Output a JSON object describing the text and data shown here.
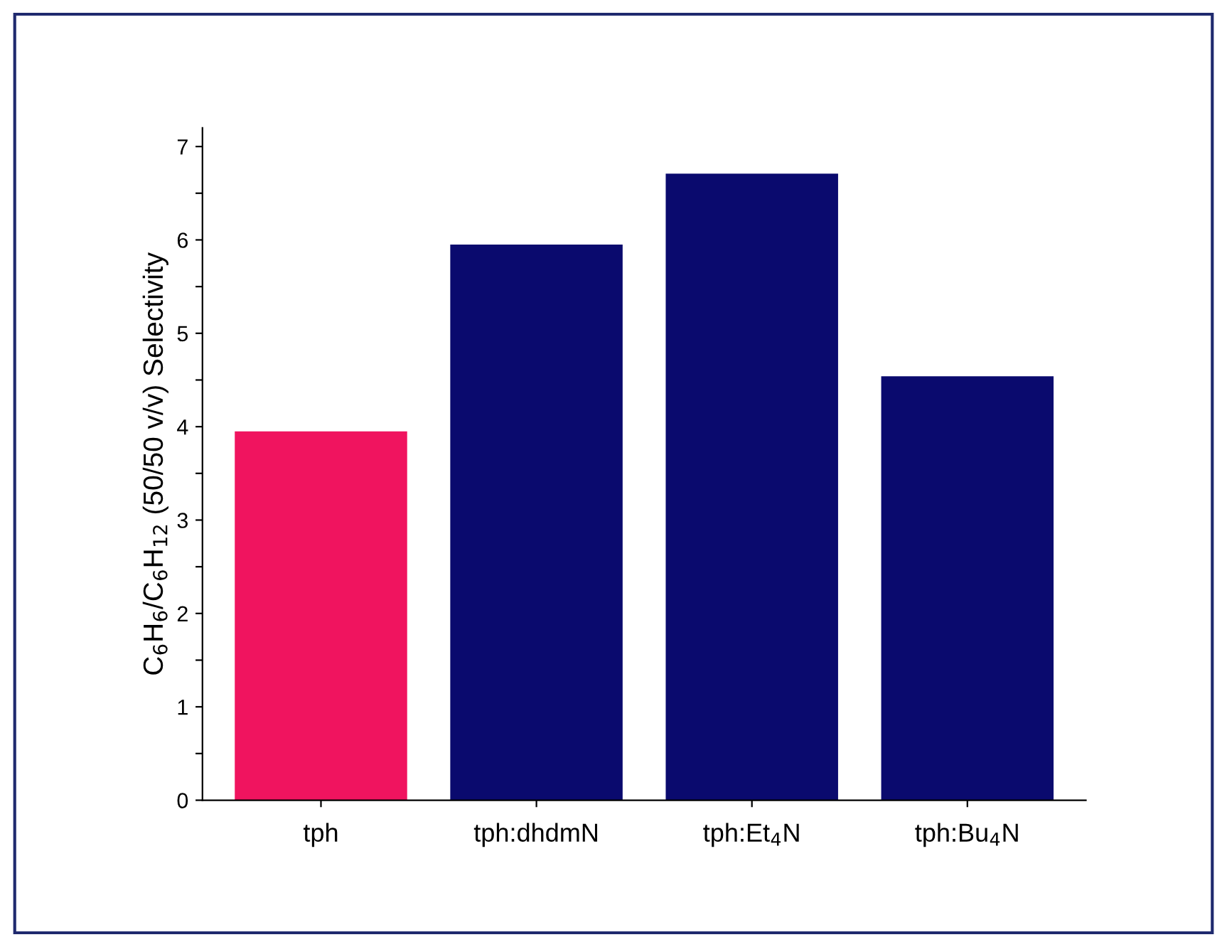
{
  "chart_data": {
    "type": "bar",
    "ylabel": "C$_{6}$H$_{6}$/C$_{6}$H$_{12}$ (50/50 v/v) Selectivity",
    "categories": [
      "tph",
      "tph:dhdmN",
      "tph:Et$_{4}$N",
      "tph:Bu$_{4}$N"
    ],
    "values": [
      3.95,
      5.95,
      6.71,
      4.54
    ],
    "colors": [
      "#f0145f",
      "#0a0a6e",
      "#0a0a6e",
      "#0a0a6e"
    ],
    "ylim": [
      0,
      7.2
    ],
    "yticks": [
      0,
      {
        "value": 0.5,
        "label": null
      },
      1,
      {
        "value": 1.5,
        "label": null
      },
      2,
      {
        "value": 2.5,
        "label": null
      },
      3,
      {
        "value": 3.5,
        "label": null
      },
      4,
      {
        "value": 4.5,
        "label": null
      },
      5,
      {
        "value": 5.5,
        "label": null
      },
      6,
      {
        "value": 6.5,
        "label": null
      },
      7
    ],
    "grid": false,
    "legend": false
  }
}
